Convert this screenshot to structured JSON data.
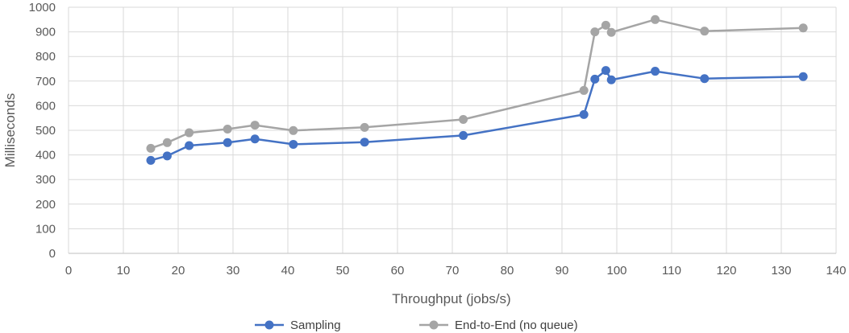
{
  "chart_data": {
    "type": "line",
    "title": "",
    "xlabel": "Throughput (jobs/s)",
    "ylabel": "Milliseconds",
    "xlim": [
      0,
      140
    ],
    "ylim": [
      0,
      1000
    ],
    "xticks": [
      0,
      10,
      20,
      30,
      40,
      50,
      60,
      70,
      80,
      90,
      100,
      110,
      120,
      130,
      140
    ],
    "yticks": [
      0,
      100,
      200,
      300,
      400,
      500,
      600,
      700,
      800,
      900,
      1000
    ],
    "grid": true,
    "legend": "bottom",
    "series": [
      {
        "name": "Sampling",
        "color": "#4472c4",
        "points": [
          [
            15,
            378
          ],
          [
            18,
            396
          ],
          [
            22,
            438
          ],
          [
            29,
            450
          ],
          [
            34,
            465
          ],
          [
            41,
            443
          ],
          [
            54,
            452
          ],
          [
            72,
            479
          ],
          [
            94,
            564
          ],
          [
            96,
            708
          ],
          [
            98,
            743
          ],
          [
            99,
            705
          ],
          [
            107,
            740
          ],
          [
            116,
            710
          ],
          [
            134,
            718
          ]
        ]
      },
      {
        "name": "End-to-End (no queue)",
        "color": "#a5a5a5",
        "points": [
          [
            15,
            427
          ],
          [
            18,
            450
          ],
          [
            22,
            490
          ],
          [
            29,
            505
          ],
          [
            34,
            521
          ],
          [
            41,
            499
          ],
          [
            54,
            512
          ],
          [
            72,
            544
          ],
          [
            94,
            662
          ],
          [
            96,
            900
          ],
          [
            98,
            927
          ],
          [
            99,
            898
          ],
          [
            107,
            950
          ],
          [
            116,
            903
          ],
          [
            134,
            916
          ]
        ]
      }
    ]
  }
}
